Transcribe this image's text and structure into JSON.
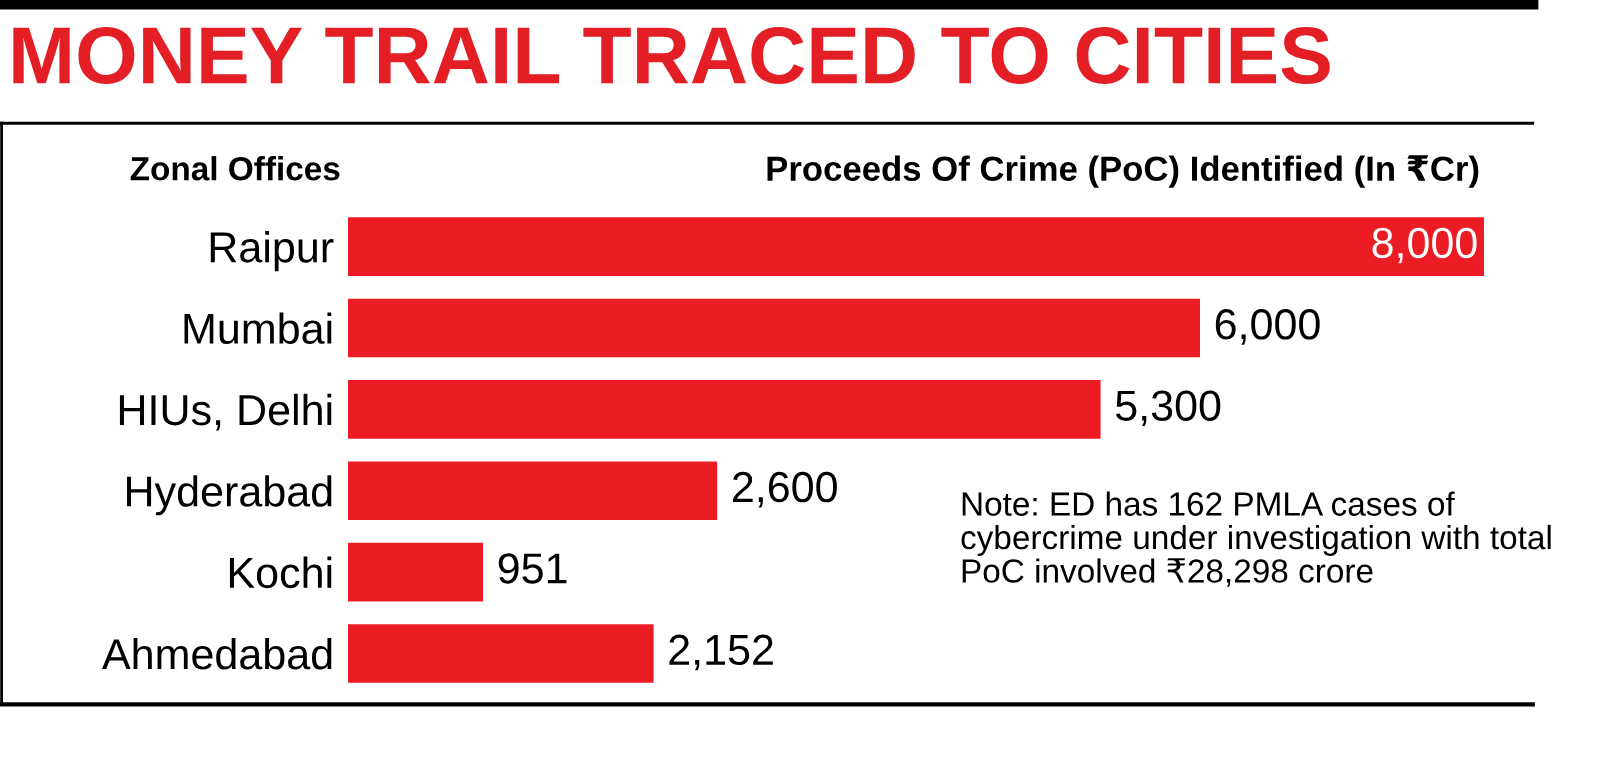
{
  "chart_data": {
    "type": "bar",
    "orientation": "horizontal",
    "title": "MONEY TRAIL TRACED TO CITIES",
    "ylabel": "Zonal Offices",
    "xlabel": "Proceeds Of Crime (PoC) Identified (In ₹Cr)",
    "categories": [
      "Raipur",
      "Mumbai",
      "HIUs, Delhi",
      "Hyderabad",
      "Kochi",
      "Ahmedabad"
    ],
    "values": [
      8000,
      6000,
      5300,
      2600,
      951,
      2152
    ],
    "color": "#ec1c24",
    "value_labels": [
      "8,000",
      "6,000",
      "5,300",
      "2,600",
      "951",
      "2,152"
    ],
    "annotations": [
      "Note: ED has 162 PMLA cases of cybercrime under investigation with total PoC involved ₹28,298 crore"
    ],
    "grid": false,
    "legend": false
  }
}
